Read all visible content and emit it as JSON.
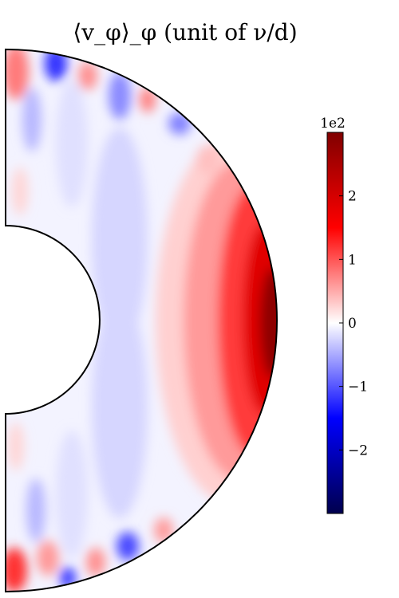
{
  "chart_data": {
    "type": "heatmap",
    "title": "⟨v_φ⟩_φ (unit of ν/d)",
    "geometry": "meridional half-annulus",
    "colormap": "seismic",
    "colormap_stops": [
      "#00004d",
      "#0000ff",
      "#ffffff",
      "#ff0000",
      "#800000"
    ],
    "colorbar": {
      "exponent_label": "1e2",
      "vmin": -3.0,
      "vmax": 3.0,
      "ticks": [
        -2,
        -1,
        0,
        1,
        2
      ],
      "tick_labels": [
        "−2",
        "−1",
        "0",
        "1",
        "2"
      ]
    },
    "field_features": [
      {
        "description": "strong prograde (positive) jet near outer boundary at equator",
        "value": 2.8
      },
      {
        "description": "negative bands in polar regions",
        "value": -1.5
      },
      {
        "description": "weak negative region near inner boundary",
        "value": -0.4
      }
    ]
  }
}
